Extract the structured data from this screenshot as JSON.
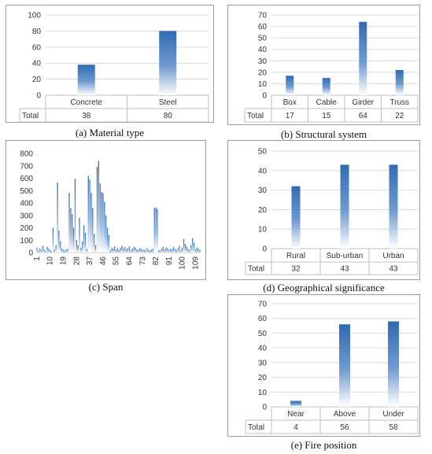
{
  "chart_data": [
    {
      "id": "a",
      "type": "bar",
      "categories": [
        "Concrete",
        "Steel"
      ],
      "values": [
        38,
        80
      ],
      "table_row_label": "Total",
      "ylim": [
        0,
        100
      ],
      "yticks": [
        0,
        20,
        40,
        60,
        80,
        100
      ],
      "caption": "(a)  Material type"
    },
    {
      "id": "b",
      "type": "bar",
      "categories": [
        "Box",
        "Cable",
        "Girder",
        "Truss"
      ],
      "values": [
        17,
        15,
        64,
        22
      ],
      "table_row_label": "Total",
      "ylim": [
        0,
        70
      ],
      "yticks": [
        0,
        10,
        20,
        30,
        40,
        50,
        60,
        70
      ],
      "caption": "(b)  Structural system"
    },
    {
      "id": "c",
      "type": "bar",
      "xticks": [
        "1",
        "10",
        "19",
        "28",
        "37",
        "46",
        "55",
        "64",
        "73",
        "82",
        "91",
        "100",
        "109"
      ],
      "values": [
        40,
        15,
        35,
        20,
        55,
        25,
        10,
        45,
        30,
        20,
        12,
        200,
        25,
        60,
        565,
        180,
        90,
        35,
        20,
        15,
        25,
        30,
        480,
        360,
        310,
        200,
        595,
        100,
        60,
        280,
        40,
        90,
        220,
        160,
        30,
        620,
        590,
        480,
        360,
        150,
        60,
        690,
        740,
        560,
        490,
        480,
        410,
        300,
        200,
        140,
        20,
        40,
        30,
        50,
        25,
        35,
        20,
        40,
        55,
        30,
        45,
        25,
        35,
        50,
        20,
        30,
        45,
        40,
        25,
        20,
        35,
        30,
        20,
        25,
        15,
        35,
        20,
        15,
        25,
        30,
        360,
        365,
        350,
        20,
        15,
        30,
        45,
        25,
        40,
        35,
        20,
        30,
        25,
        45,
        30,
        20,
        35,
        55,
        20,
        40,
        110,
        70,
        50,
        30,
        20,
        60,
        115,
        80,
        25,
        40,
        30,
        20
      ],
      "ylim": [
        0,
        800
      ],
      "yticks": [
        0,
        100,
        200,
        300,
        400,
        500,
        600,
        700,
        800
      ],
      "caption": "(c)  Span"
    },
    {
      "id": "d",
      "type": "bar",
      "categories": [
        "Rural",
        "Sub-urban",
        "Urban"
      ],
      "values": [
        32,
        43,
        43
      ],
      "table_row_label": "Total",
      "ylim": [
        0,
        50
      ],
      "yticks": [
        0,
        10,
        20,
        30,
        40,
        50
      ],
      "caption": "(d)  Geographical significance"
    },
    {
      "id": "e",
      "type": "bar",
      "categories": [
        "Near",
        "Above",
        "Under"
      ],
      "values": [
        4,
        56,
        58
      ],
      "table_row_label": "Total",
      "ylim": [
        0,
        70
      ],
      "yticks": [
        0,
        10,
        20,
        30,
        40,
        50,
        60,
        70
      ],
      "caption": "(e)  Fire position"
    }
  ],
  "colors": {
    "bar_top": "#2f6bb3",
    "bar_bottom": "#ffffff",
    "grid": "#d9d9d9",
    "border": "#9a9a9a"
  }
}
